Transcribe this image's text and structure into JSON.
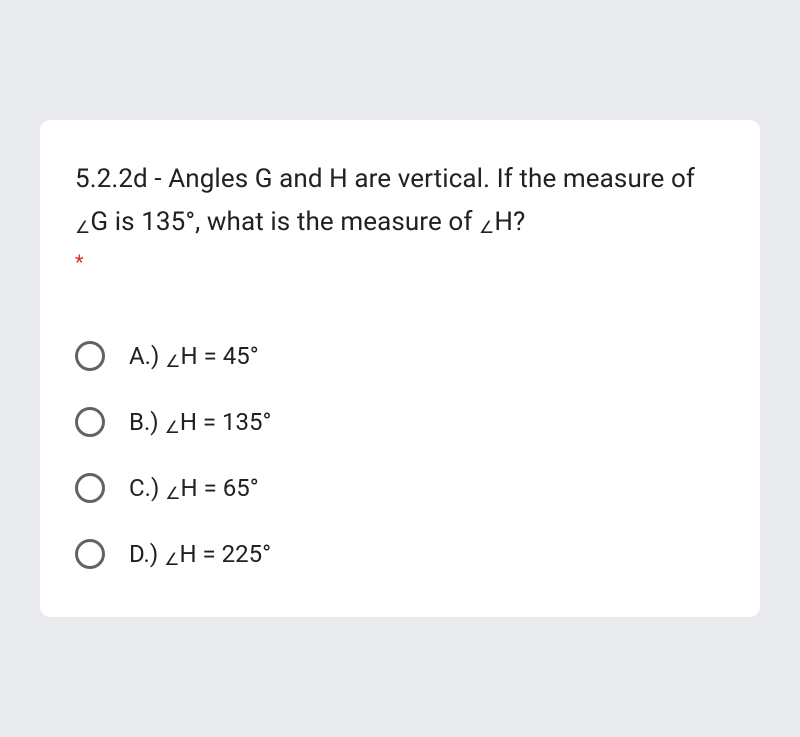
{
  "card": {
    "background_color": "#ffffff",
    "border_radius": 10
  },
  "page": {
    "background_color": "#e8eaed"
  },
  "question": {
    "prefix": "5.2.2d - Angles G and H are vertical. If the measure of ",
    "angle1": "∠",
    "mid1": "G is 135°, what is the measure of ",
    "angle2": "∠",
    "suffix": "H?",
    "required_marker": "*",
    "required_color": "#d93025",
    "text_color": "#202124",
    "fontsize": 26
  },
  "options": [
    {
      "prefix": "A.) ",
      "angle": "∠",
      "value": "H = 45°"
    },
    {
      "prefix": "B.) ",
      "angle": "∠",
      "value": "H = 135°"
    },
    {
      "prefix": "C.) ",
      "angle": "∠",
      "value": "H = 65°"
    },
    {
      "prefix": "D.) ",
      "angle": "∠",
      "value": "H = 225°"
    }
  ],
  "radio": {
    "border_color": "#5f6368",
    "size": 30
  }
}
